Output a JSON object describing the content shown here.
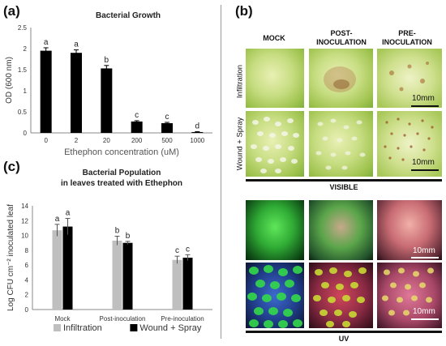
{
  "panels": {
    "a": {
      "letter": "(a)",
      "chart_data": {
        "type": "bar",
        "title": "Bacterial Growth",
        "xlabel": "Ethephon concentration (uM)",
        "ylabel": "OD (600 nm)",
        "ylim": [
          0,
          2.5
        ],
        "yticks": [
          "0",
          "0.5",
          "1",
          "1.5",
          "2",
          "2.5"
        ],
        "categories": [
          "0",
          "2",
          "20",
          "200",
          "500",
          "1000"
        ],
        "values": [
          1.95,
          1.9,
          1.53,
          0.27,
          0.23,
          0.02
        ],
        "errors": [
          0.07,
          0.07,
          0.07,
          0.02,
          0.02,
          0.01
        ],
        "letters": [
          "a",
          "a",
          "b",
          "c",
          "c",
          "d"
        ],
        "bar_color": "#000000",
        "grid": false
      }
    },
    "b": {
      "letter": "(b)",
      "columns": [
        "MOCK",
        "POST-\nINOCULATION",
        "PRE-\nINOCULATION"
      ],
      "rows": [
        "Infiltration",
        "Wound + Spray"
      ],
      "scale_labels": [
        "10mm",
        "10mm",
        "10mm",
        "10mm"
      ],
      "visible_label": "VISIBLE",
      "uv_label": "UV"
    },
    "c": {
      "letter": "(c)",
      "chart_data": {
        "type": "bar",
        "title": "Bacterial Population",
        "subtitle": "in leaves treated with Ethephon",
        "xlabel": "",
        "ylabel": "Log CFU cm⁻² inoculated leaf",
        "ylim": [
          0,
          14
        ],
        "yticks": [
          "0",
          "2",
          "4",
          "6",
          "8",
          "10",
          "12",
          "14"
        ],
        "categories": [
          "Mock",
          "Post-inoculation",
          "Pre-inoculation"
        ],
        "series": [
          {
            "name": "Infiltration",
            "values": [
              10.7,
              9.3,
              6.7
            ],
            "errors": [
              0.8,
              0.6,
              0.5
            ],
            "letters": [
              "a",
              "b",
              "c"
            ],
            "color": "#bfbfbf"
          },
          {
            "name": "Wound + Spray",
            "values": [
              11.2,
              9.0,
              7.0
            ],
            "errors": [
              1.1,
              0.2,
              0.4
            ],
            "letters": [
              "a",
              "b",
              "c"
            ],
            "color": "#000000"
          }
        ],
        "legend": "bottom",
        "grid": false
      }
    }
  }
}
